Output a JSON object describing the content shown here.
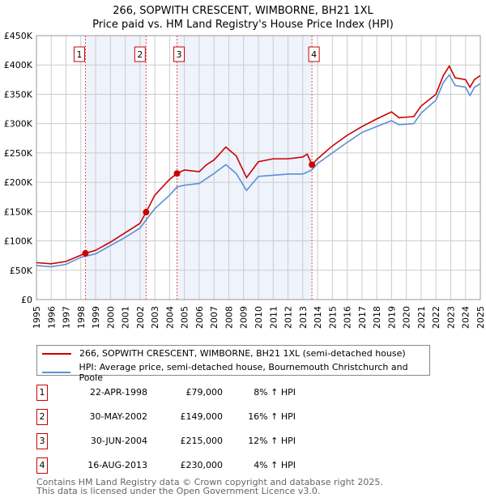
{
  "chart_data": {
    "type": "line",
    "title": "266, SOPWITH CRESCENT, WIMBORNE, BH21 1XL",
    "subtitle": "Price paid vs. HM Land Registry's House Price Index (HPI)",
    "xlim": [
      1995,
      2025
    ],
    "ylim": [
      0,
      450000
    ],
    "x_ticks": [
      "1995",
      "1996",
      "1997",
      "1998",
      "1999",
      "2000",
      "2001",
      "2002",
      "2003",
      "2004",
      "2005",
      "2006",
      "2007",
      "2008",
      "2009",
      "2010",
      "2011",
      "2012",
      "2013",
      "2014",
      "2015",
      "2016",
      "2017",
      "2018",
      "2019",
      "2020",
      "2021",
      "2022",
      "2023",
      "2024",
      "2025"
    ],
    "y_ticks": [
      {
        "v": 0,
        "label": "£0"
      },
      {
        "v": 50000,
        "label": "£50K"
      },
      {
        "v": 100000,
        "label": "£100K"
      },
      {
        "v": 150000,
        "label": "£150K"
      },
      {
        "v": 200000,
        "label": "£200K"
      },
      {
        "v": 250000,
        "label": "£250K"
      },
      {
        "v": 300000,
        "label": "£300K"
      },
      {
        "v": 350000,
        "label": "£350K"
      },
      {
        "v": 400000,
        "label": "£400K"
      },
      {
        "v": 450000,
        "label": "£450K"
      }
    ],
    "grid": true,
    "shaded_ranges": [
      [
        1998.31,
        2002.41
      ],
      [
        2004.5,
        2013.62
      ]
    ],
    "series": [
      {
        "name": "266, SOPWITH CRESCENT, WIMBORNE, BH21 1XL (semi-detached house)",
        "color": "#cc0000",
        "x": [
          1995,
          1996,
          1997,
          1998.31,
          1999,
          2000,
          2001,
          2002,
          2002.41,
          2003,
          2004,
          2004.5,
          2005,
          2006,
          2006.5,
          2007,
          2007.8,
          2008.5,
          2009.2,
          2010,
          2011,
          2012,
          2013,
          2013.3,
          2013.62,
          2014,
          2015,
          2016,
          2017,
          2018,
          2019,
          2019.5,
          2020.5,
          2021,
          2022,
          2022.5,
          2022.9,
          2023.3,
          2024,
          2024.3,
          2024.6,
          2025
        ],
        "y": [
          63000,
          61000,
          65000,
          79000,
          84000,
          98000,
          114000,
          130000,
          149000,
          178000,
          205000,
          215000,
          221000,
          218000,
          230000,
          238000,
          260000,
          245000,
          208000,
          235000,
          240000,
          240000,
          243000,
          248000,
          230000,
          240000,
          262000,
          280000,
          295000,
          308000,
          320000,
          310000,
          312000,
          330000,
          350000,
          382000,
          398000,
          378000,
          375000,
          362000,
          375000,
          382000
        ]
      },
      {
        "name": "HPI: Average price, semi-detached house, Bournemouth Christchurch and Poole",
        "color": "#5b8fd4",
        "x": [
          1995,
          1996,
          1997,
          1998,
          1999,
          2000,
          2001,
          2002,
          2003,
          2004,
          2004.5,
          2005,
          2006,
          2007,
          2007.8,
          2008.5,
          2009.2,
          2010,
          2011,
          2012,
          2013,
          2013.62,
          2014,
          2015,
          2016,
          2017,
          2018,
          2019,
          2019.5,
          2020.5,
          2021,
          2022,
          2022.5,
          2022.9,
          2023.3,
          2024,
          2024.3,
          2024.6,
          2025
        ],
        "y": [
          58000,
          56000,
          60000,
          72000,
          78000,
          92000,
          106000,
          122000,
          155000,
          178000,
          192000,
          195000,
          198000,
          215000,
          230000,
          215000,
          186000,
          210000,
          212000,
          214000,
          214000,
          221000,
          232000,
          250000,
          268000,
          285000,
          295000,
          305000,
          298000,
          300000,
          318000,
          340000,
          370000,
          383000,
          365000,
          362000,
          348000,
          362000,
          368000
        ]
      }
    ],
    "sales": [
      {
        "label": "1",
        "x": 2002.41,
        "x_sale": 1998.31,
        "date": "22-APR-1998",
        "price": 79000,
        "price_label": "£79,000",
        "hpi": "8% ↑ HPI"
      },
      {
        "label": "2",
        "x_sale": 2002.41,
        "date": "30-MAY-2002",
        "price": 149000,
        "price_label": "£149,000",
        "hpi": "16% ↑ HPI"
      },
      {
        "label": "3",
        "x_sale": 2004.5,
        "date": "30-JUN-2004",
        "price": 215000,
        "price_label": "£215,000",
        "hpi": "12% ↑ HPI"
      },
      {
        "label": "4",
        "x_sale": 2013.62,
        "date": "16-AUG-2013",
        "price": 230000,
        "price_label": "£230,000",
        "hpi": "4% ↑ HPI"
      }
    ]
  },
  "footer": {
    "line1": "Contains HM Land Registry data © Crown copyright and database right 2025.",
    "line2": "This data is licensed under the Open Government Licence v3.0."
  }
}
